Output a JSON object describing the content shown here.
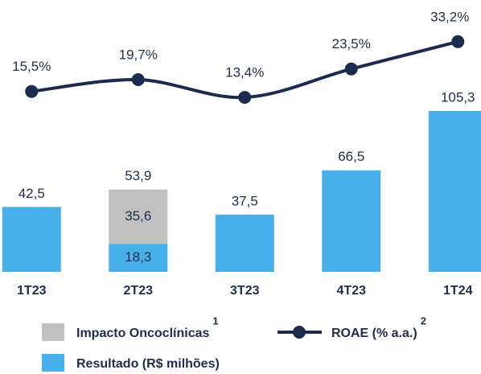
{
  "chart_data": {
    "type": "bar",
    "categories": [
      "1T23",
      "2T23",
      "3T23",
      "4T23",
      "1T24"
    ],
    "series": [
      {
        "name": "Resultado (R$ milhões)",
        "type": "bar",
        "color": "#47b0ea",
        "values": [
          42.5,
          18.3,
          37.5,
          66.5,
          105.3
        ],
        "value_labels": [
          "42,5",
          "18,3",
          "37,5",
          "66,5",
          "105,3"
        ]
      },
      {
        "name": "Impacto Oncoclínicas",
        "note": "1",
        "type": "bar",
        "color": "#c0c0c0",
        "values": [
          null,
          35.6,
          null,
          null,
          null
        ],
        "value_labels": [
          null,
          "35,6",
          null,
          null,
          null
        ]
      },
      {
        "name": "ROAE (% a.a.)",
        "note": "2",
        "type": "line",
        "axis": "y2",
        "color": "#1b2a4e",
        "values": [
          15.5,
          19.7,
          13.4,
          23.5,
          33.2
        ],
        "value_labels": [
          "15,5%",
          "19,7%",
          "13,4%",
          "23,5%",
          "33,2%"
        ]
      }
    ],
    "totals": [
      null,
      53.9,
      null,
      null,
      null
    ],
    "total_labels": [
      null,
      "53,9",
      null,
      null,
      null
    ],
    "stacked": true,
    "ylim": [
      0,
      178
    ],
    "y2lim": [
      -48.6,
      48
    ]
  }
}
